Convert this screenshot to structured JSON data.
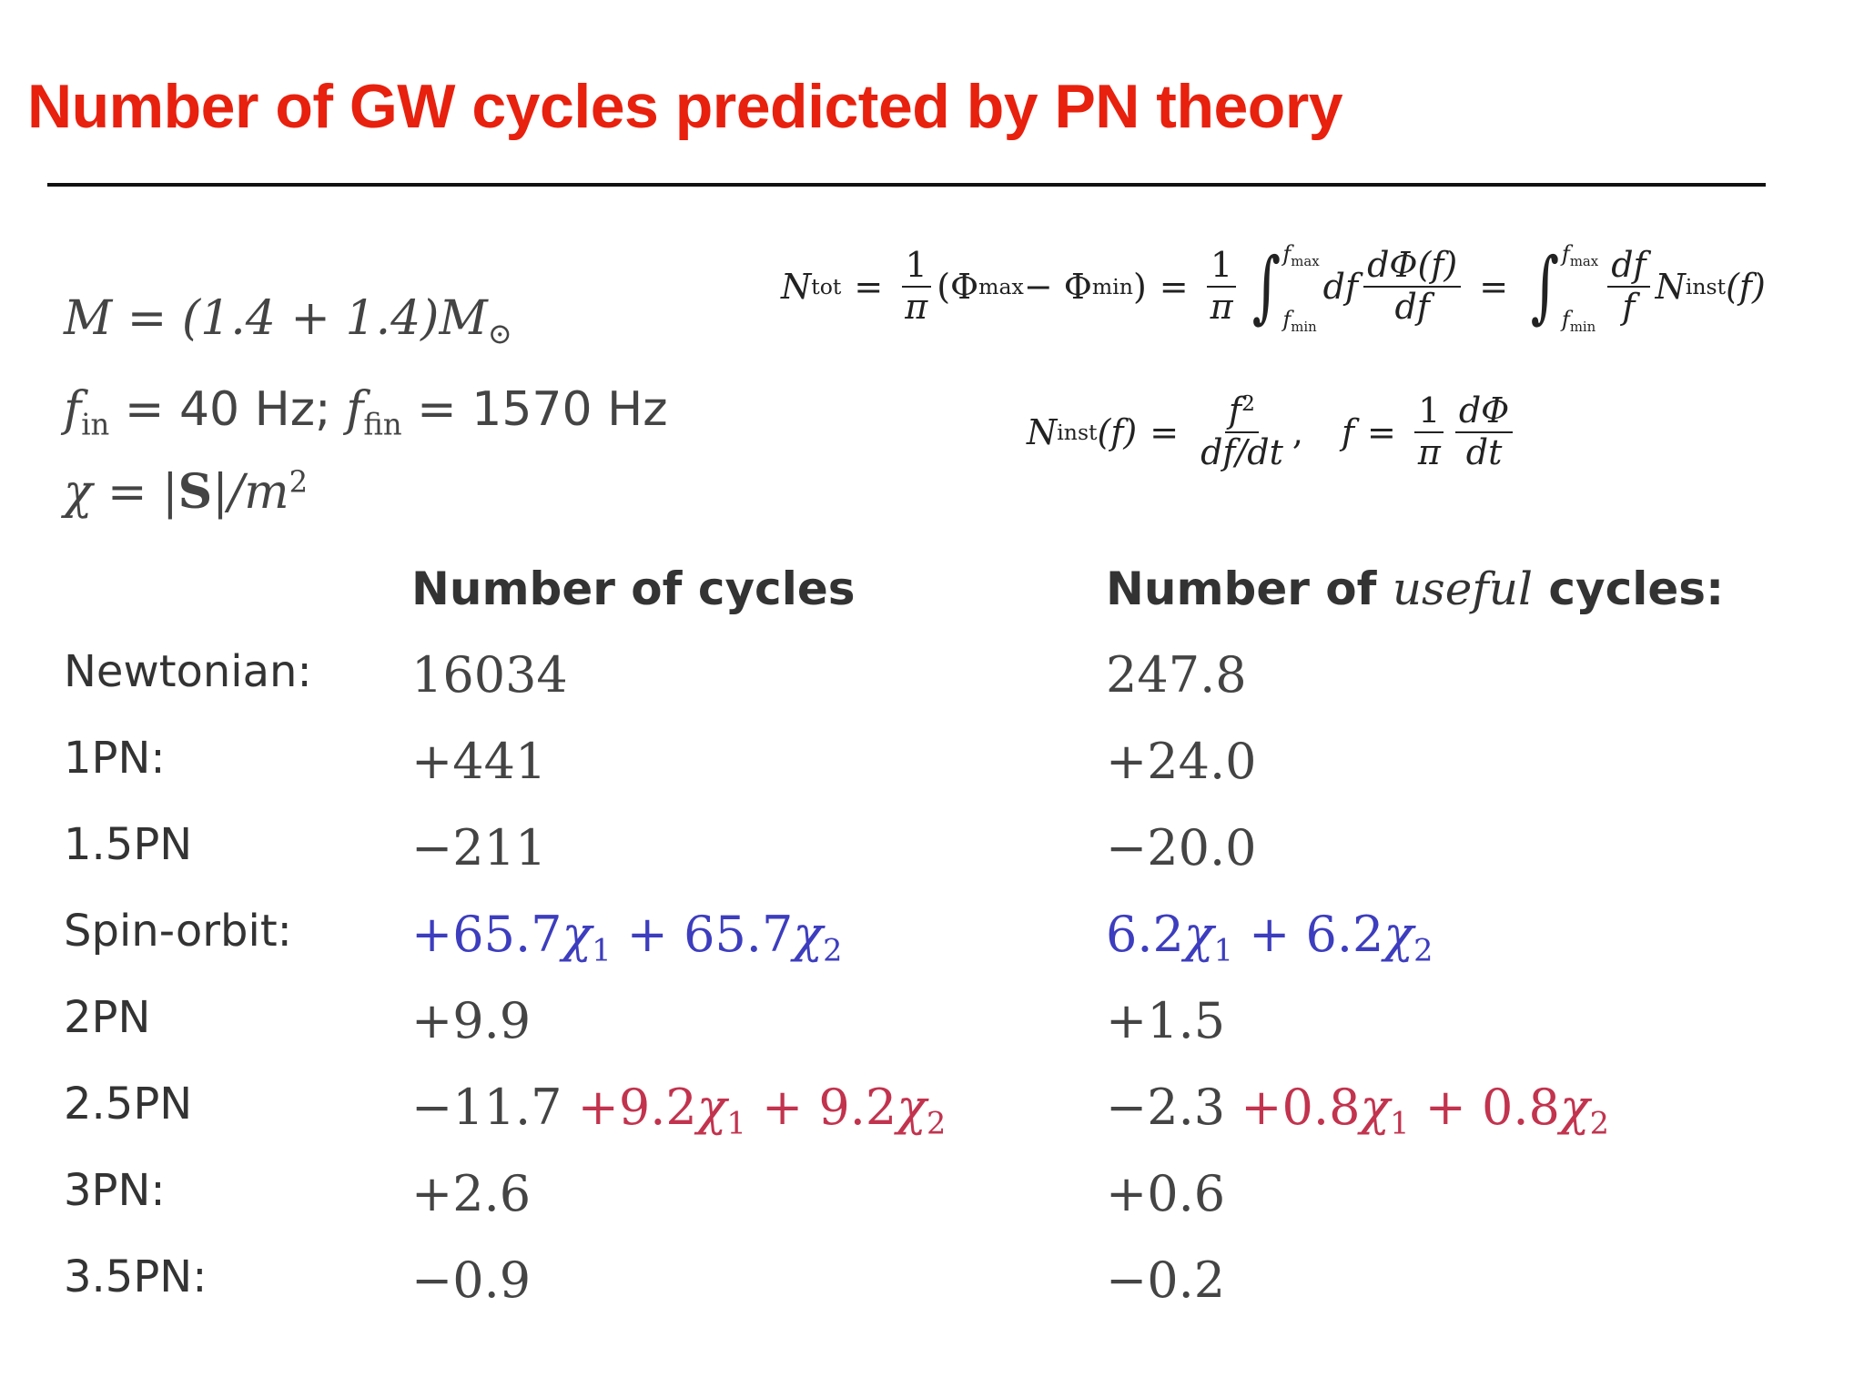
{
  "slide": {
    "title": "Number of GW cycles predicted by PN theory"
  },
  "parameters": {
    "mass": "M = (1.4 + 1.4)M",
    "mass_sun": "⊙",
    "freq_in_label": "f",
    "freq_in_sub": "in",
    "freq_in_value": " = 40 Hz; ",
    "freq_fin_label": "f",
    "freq_fin_sub": "fin",
    "freq_fin_value": " = 1570 Hz",
    "chi_lhs": "χ = |",
    "chi_S": "S",
    "chi_rhs": "|/m",
    "chi_exp": "2"
  },
  "formulas": {
    "ntot": {
      "lhs": "N",
      "lhs_sub": "tot",
      "eq": "=",
      "one": "1",
      "pi": "π",
      "phase_diff_open": "(Φ",
      "phase_max_sub": "max",
      "minus": " − Φ",
      "phase_min_sub": "min",
      "close": ")",
      "int_sym": "∫",
      "fmax": "f",
      "fmax_sub": "max",
      "fmin": "f",
      "fmin_sub": "min",
      "df": "df",
      "dphi_num": "dΦ(f)",
      "dphi_den": "df",
      "df_num": "df",
      "f_den": "f",
      "ninst": "N",
      "ninst_sub": "inst",
      "ninst_arg": "(f)"
    },
    "ninst": {
      "lhs": "N",
      "lhs_sub": "inst",
      "lhs_arg": "(f)",
      "eq": "=",
      "num": "f",
      "num_exp": "2",
      "den": "df/dt",
      "comma": ",",
      "f": "f",
      "one": "1",
      "pi": "π",
      "dphi": "dΦ",
      "dt": "dt"
    }
  },
  "table": {
    "header_cycles": "Number of cycles",
    "header_useful_pre": "Number of ",
    "header_useful_em": "useful",
    "header_useful_post": " cycles:",
    "rows": [
      {
        "label": "Newtonian:",
        "cycles": "16034",
        "useful": "247.8"
      },
      {
        "label": "1PN:",
        "cycles": "+441",
        "useful": "+24.0"
      },
      {
        "label": "1.5PN",
        "cycles": "−211",
        "useful": "−20.0"
      },
      {
        "label": "Spin-orbit:",
        "cycles_a": "+65.7",
        "cycles_b": " + 65.7",
        "useful_a": "6.2",
        "useful_b": " + 6.2"
      },
      {
        "label": "2PN",
        "cycles": "+9.9",
        "useful": "+1.5"
      },
      {
        "label": "2.5PN",
        "cycles": "−11.7 ",
        "cycles_a": "+9.2",
        "cycles_b": " + 9.2",
        "useful": "−2.3 ",
        "useful_a": "+0.8",
        "useful_b": " + 0.8"
      },
      {
        "label": "3PN:",
        "cycles": "+2.6",
        "useful": "+0.6"
      },
      {
        "label": "3.5PN:",
        "cycles": "−0.9",
        "useful": "−0.2"
      }
    ],
    "chi": "χ",
    "chi1": "1",
    "chi2": "2"
  },
  "colors": {
    "title": "#e8200e",
    "spin_orbit": "#3d3dbf",
    "spin_spin": "#c2334e"
  }
}
